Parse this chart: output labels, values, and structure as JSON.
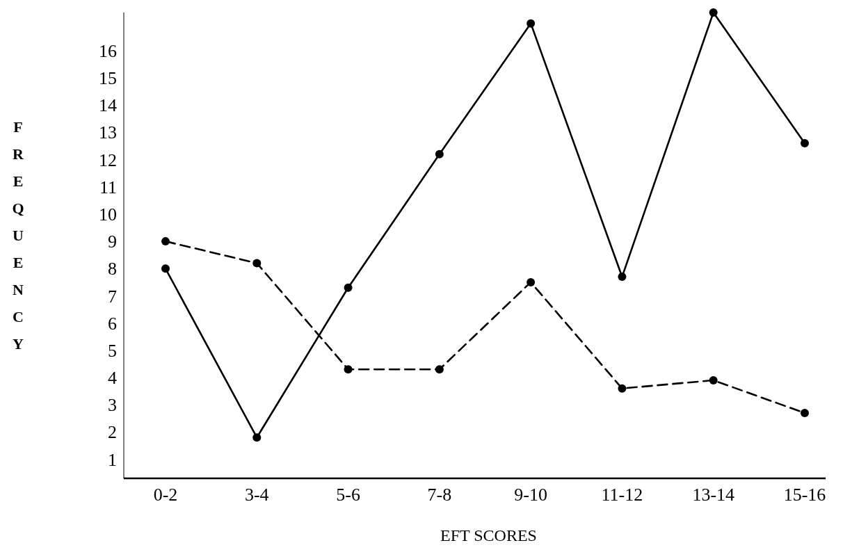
{
  "chart_data": {
    "type": "line",
    "xlabel": "EFT SCORES",
    "ylabel": "FREQUENCY",
    "categories": [
      "0-2",
      "3-4",
      "5-6",
      "7-8",
      "9-10",
      "11-12",
      "13-14",
      "15-16"
    ],
    "series": [
      {
        "color": "#000000",
        "line_style": "solid",
        "values": [
          8,
          1.8,
          7.3,
          12.2,
          17,
          7.7,
          17.4,
          12.6
        ]
      },
      {
        "color": "#000000",
        "line_style": "dashed",
        "values": [
          9,
          8.2,
          4.3,
          4.3,
          7.5,
          3.6,
          3.9,
          2.7
        ]
      }
    ],
    "ylim": [
      0.3,
      17.4
    ],
    "yticks": [
      1,
      2,
      3,
      4,
      5,
      6,
      7,
      8,
      9,
      10,
      11,
      12,
      13,
      14,
      15,
      16
    ],
    "marker": "circle",
    "grid": false
  }
}
